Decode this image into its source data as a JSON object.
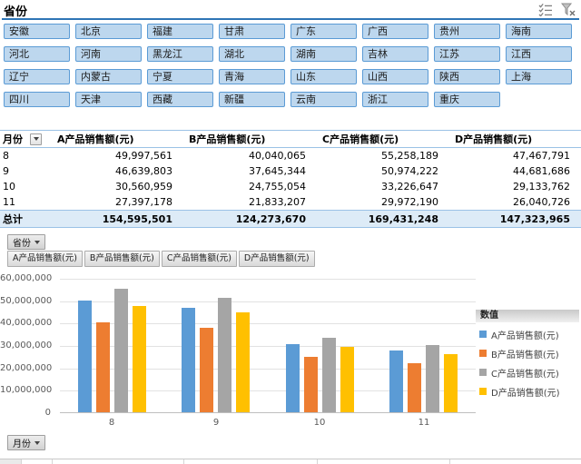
{
  "slicer": {
    "title": "省份",
    "provinces": [
      "安徽",
      "北京",
      "福建",
      "甘肃",
      "广东",
      "广西",
      "贵州",
      "海南",
      "河北",
      "河南",
      "黑龙江",
      "湖北",
      "湖南",
      "吉林",
      "江苏",
      "江西",
      "辽宁",
      "内蒙古",
      "宁夏",
      "青海",
      "山东",
      "山西",
      "陕西",
      "上海",
      "四川",
      "天津",
      "西藏",
      "新疆",
      "云南",
      "浙江",
      "重庆"
    ]
  },
  "pivot_table": {
    "header": [
      "月份",
      "A产品销售额(元)",
      "B产品销售额(元)",
      "C产品销售额(元)",
      "D产品销售额(元)"
    ],
    "rows": [
      [
        "8",
        "49,997,561",
        "40,040,065",
        "55,258,189",
        "47,467,791"
      ],
      [
        "9",
        "46,639,803",
        "37,645,344",
        "50,974,222",
        "44,681,686"
      ],
      [
        "10",
        "30,560,959",
        "24,755,054",
        "33,226,647",
        "29,133,762"
      ],
      [
        "11",
        "27,397,178",
        "21,833,207",
        "29,972,190",
        "26,040,726"
      ]
    ],
    "total_row": [
      "总计",
      "154,595,501",
      "124,273,670",
      "169,431,248",
      "147,323,965"
    ]
  },
  "chart": {
    "axis_field_button": "省份",
    "category_field_button": "月份",
    "value_field_buttons": [
      "A产品销售额(元)",
      "B产品销售额(元)",
      "C产品销售额(元)",
      "D产品销售额(元)"
    ],
    "legend_title": "数值"
  },
  "chart_data": {
    "type": "bar",
    "categories": [
      "8",
      "9",
      "10",
      "11"
    ],
    "series": [
      {
        "name": "A产品销售额(元)",
        "color": "#5B9BD5",
        "values": [
          49997561,
          46639803,
          30560959,
          27397178
        ]
      },
      {
        "name": "B产品销售额(元)",
        "color": "#ED7D31",
        "values": [
          40040065,
          37645344,
          24755054,
          21833207
        ]
      },
      {
        "name": "C产品销售额(元)",
        "color": "#A5A5A5",
        "values": [
          55258189,
          50974222,
          33226647,
          29972190
        ]
      },
      {
        "name": "D产品销售额(元)",
        "color": "#FFC000",
        "values": [
          47467791,
          44681686,
          29133762,
          26040726
        ]
      }
    ],
    "ylim": [
      0,
      60000000
    ],
    "ytick_step": 10000000,
    "yticks": [
      "60,000,000",
      "50,000,000",
      "40,000,000",
      "30,000,000",
      "20,000,000",
      "10,000,000",
      "0"
    ],
    "grid": true,
    "legend_position": "right",
    "title": "",
    "xlabel": "",
    "ylabel": ""
  },
  "colors": {
    "slicer_button_bg": "#BDD7EE",
    "slicer_button_border": "#5B9BD5",
    "slicer_underline": "#2E75B6",
    "table_line": "#9BC2E6",
    "total_row_bg": "#DDEBF7"
  }
}
